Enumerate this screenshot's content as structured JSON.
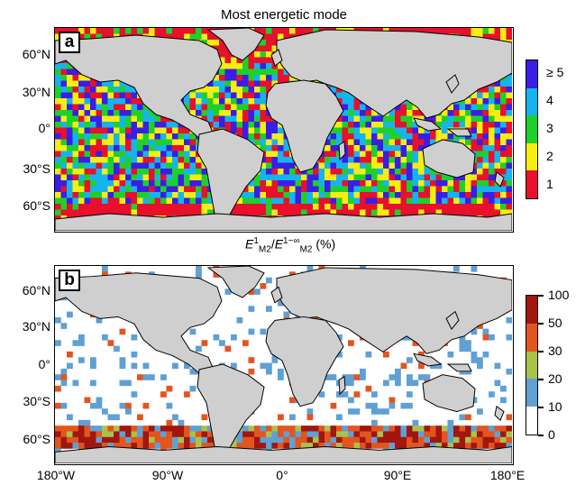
{
  "figure": {
    "title": "Most energetic mode",
    "middle_axis_label": "E¹M₂/E¹⁻∞M₂ (%)",
    "middle_axis_label_parts": {
      "base": "E",
      "sup1": "1",
      "sub1": "M",
      "subsub1": "2",
      "sup2": "1−∞",
      "sub2": "M",
      "subsub2": "2",
      "unit": "(%)"
    },
    "lat_labels": [
      "60°N",
      "30°N",
      "0°",
      "30°S",
      "60°S"
    ],
    "lon_labels": [
      "180°W",
      "90°W",
      "0°",
      "90°E",
      "180°E"
    ]
  },
  "panel_a": {
    "letter": "a",
    "colorbar": {
      "labels": [
        "≥ 5",
        "4",
        "3",
        "2",
        "1"
      ],
      "colors": [
        "#3a1ee8",
        "#16b4ee",
        "#1fd02a",
        "#f6ee10",
        "#e8102a"
      ]
    }
  },
  "panel_b": {
    "letter": "b",
    "colorbar": {
      "labels": [
        "100",
        "50",
        "30",
        "20",
        "10",
        "0"
      ],
      "colors": [
        "#a1160e",
        "#e3541f",
        "#a9c24a",
        "#5fa0d5",
        "#ffffff"
      ]
    }
  },
  "colors": {
    "land": "#cfcfcf",
    "shelf": "#8a8a8a",
    "coast": "#000000"
  }
}
